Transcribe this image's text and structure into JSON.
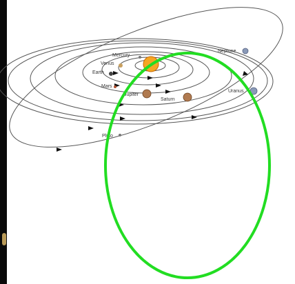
{
  "labels": {
    "mercury": "Mercury",
    "venus": "Venus",
    "earth": "Earth",
    "mars": "Mars",
    "jupiter": "Jupiter",
    "saturn": "Saturn",
    "uranus": "Uranus",
    "neptune": "Neptune",
    "pluto": "Pluto"
  },
  "colors": {
    "orbit": "#555555",
    "highlight": "#22dd22",
    "sun": "#f5a623",
    "sun_edge": "#c96a00",
    "planet_brown": "#b07a50",
    "planet_blue": "#8a9ab8",
    "planet_dark": "#444444",
    "arrow": "#111111"
  }
}
